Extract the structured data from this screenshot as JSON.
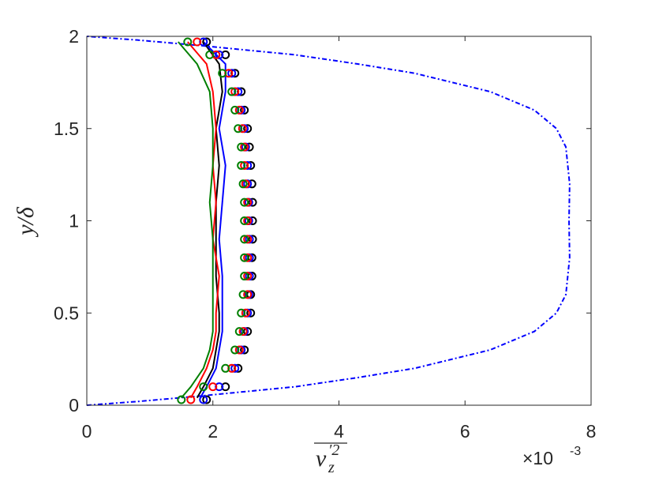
{
  "chart_data": {
    "type": "line",
    "xlabel": [
      "v",
      "′2",
      "z"
    ],
    "ylabel": "y/δ",
    "x_multiplier": [
      "×10",
      "-3"
    ],
    "xlim": [
      0,
      8
    ],
    "xticks": [
      0,
      2,
      4,
      6,
      8
    ],
    "ylim": [
      0,
      2
    ],
    "yticks": [
      0,
      0.5,
      1,
      1.5,
      2
    ],
    "grid": false,
    "series": [
      {
        "color": "#0000ff",
        "style": "dashdot",
        "x": [
          0,
          0.8,
          1.8,
          3.3,
          4.3,
          5.2,
          6.4,
          7.1,
          7.45,
          7.6,
          7.66,
          7.65,
          7.66,
          7.6,
          7.45,
          7.1,
          6.4,
          5.2,
          4.3,
          3.3,
          1.8,
          0.8,
          0
        ],
        "y": [
          0,
          0.02,
          0.05,
          0.1,
          0.15,
          0.2,
          0.3,
          0.4,
          0.5,
          0.6,
          0.8,
          1.0,
          1.2,
          1.4,
          1.5,
          1.6,
          1.7,
          1.8,
          1.85,
          1.9,
          1.95,
          1.98,
          2.0
        ]
      },
      {
        "color": "#000000",
        "style": "solid",
        "x": [
          1.75,
          1.85,
          2.0,
          2.05,
          2.1,
          2.1,
          2.05,
          2.05,
          2.05,
          2.1,
          2.05,
          2.15,
          2.1,
          1.85
        ],
        "y": [
          0.04,
          0.1,
          0.2,
          0.3,
          0.4,
          0.5,
          0.7,
          0.9,
          1.1,
          1.3,
          1.5,
          1.7,
          1.85,
          1.97
        ]
      },
      {
        "color": "#ff0000",
        "style": "solid",
        "x": [
          1.65,
          1.75,
          1.9,
          2.0,
          2.05,
          2.05,
          2.1,
          2.0,
          2.05,
          2.0,
          2.05,
          2.0,
          1.9,
          1.6
        ],
        "y": [
          0.04,
          0.1,
          0.2,
          0.3,
          0.4,
          0.5,
          0.7,
          0.9,
          1.1,
          1.3,
          1.5,
          1.7,
          1.85,
          1.97
        ]
      },
      {
        "color": "#0000ff",
        "style": "solid",
        "x": [
          1.8,
          1.9,
          2.05,
          2.1,
          2.15,
          2.15,
          2.15,
          2.1,
          2.15,
          2.2,
          2.1,
          2.2,
          2.2,
          1.85
        ],
        "y": [
          0.04,
          0.1,
          0.2,
          0.3,
          0.4,
          0.5,
          0.7,
          0.9,
          1.1,
          1.3,
          1.5,
          1.7,
          1.85,
          1.97
        ]
      },
      {
        "color": "#007f00",
        "style": "solid",
        "x": [
          1.5,
          1.65,
          1.85,
          1.95,
          2.0,
          2.0,
          2.0,
          2.0,
          1.95,
          2.0,
          2.0,
          1.95,
          1.75,
          1.45
        ],
        "y": [
          0.04,
          0.1,
          0.2,
          0.3,
          0.4,
          0.5,
          0.7,
          0.9,
          1.1,
          1.3,
          1.5,
          1.7,
          1.85,
          1.97
        ]
      },
      {
        "color": "#000000",
        "style": "circle",
        "x": [
          1.9,
          2.2,
          2.4,
          2.5,
          2.55,
          2.6,
          2.6,
          2.62,
          2.62,
          2.63,
          2.63,
          2.63,
          2.62,
          2.6,
          2.58,
          2.55,
          2.5,
          2.45,
          2.35,
          2.2,
          1.9
        ],
        "y": [
          0.03,
          0.1,
          0.2,
          0.3,
          0.4,
          0.5,
          0.6,
          0.7,
          0.8,
          0.9,
          1.0,
          1.1,
          1.2,
          1.3,
          1.4,
          1.5,
          1.6,
          1.7,
          1.8,
          1.9,
          1.97
        ]
      },
      {
        "color": "#0000ff",
        "style": "circle",
        "x": [
          1.85,
          2.1,
          2.35,
          2.45,
          2.5,
          2.55,
          2.57,
          2.58,
          2.58,
          2.58,
          2.57,
          2.57,
          2.55,
          2.55,
          2.52,
          2.5,
          2.45,
          2.4,
          2.3,
          2.1,
          1.85
        ],
        "y": [
          0.03,
          0.1,
          0.2,
          0.3,
          0.4,
          0.5,
          0.6,
          0.7,
          0.8,
          0.9,
          1.0,
          1.1,
          1.2,
          1.3,
          1.4,
          1.5,
          1.6,
          1.7,
          1.8,
          1.9,
          1.97
        ]
      },
      {
        "color": "#ff0000",
        "style": "circle",
        "x": [
          1.65,
          2.0,
          2.3,
          2.42,
          2.48,
          2.52,
          2.55,
          2.55,
          2.55,
          2.55,
          2.55,
          2.55,
          2.52,
          2.5,
          2.5,
          2.47,
          2.42,
          2.35,
          2.25,
          2.05,
          1.75
        ],
        "y": [
          0.03,
          0.1,
          0.2,
          0.3,
          0.4,
          0.5,
          0.6,
          0.7,
          0.8,
          0.9,
          1.0,
          1.1,
          1.2,
          1.3,
          1.4,
          1.5,
          1.6,
          1.7,
          1.8,
          1.9,
          1.97
        ]
      },
      {
        "color": "#007f00",
        "style": "circle",
        "x": [
          1.5,
          1.85,
          2.2,
          2.35,
          2.42,
          2.45,
          2.48,
          2.5,
          2.5,
          2.5,
          2.5,
          2.5,
          2.48,
          2.45,
          2.45,
          2.4,
          2.35,
          2.3,
          2.15,
          1.95,
          1.6
        ],
        "y": [
          0.03,
          0.1,
          0.2,
          0.3,
          0.4,
          0.5,
          0.6,
          0.7,
          0.8,
          0.9,
          1.0,
          1.1,
          1.2,
          1.3,
          1.4,
          1.5,
          1.6,
          1.7,
          1.8,
          1.9,
          1.97
        ]
      }
    ]
  }
}
